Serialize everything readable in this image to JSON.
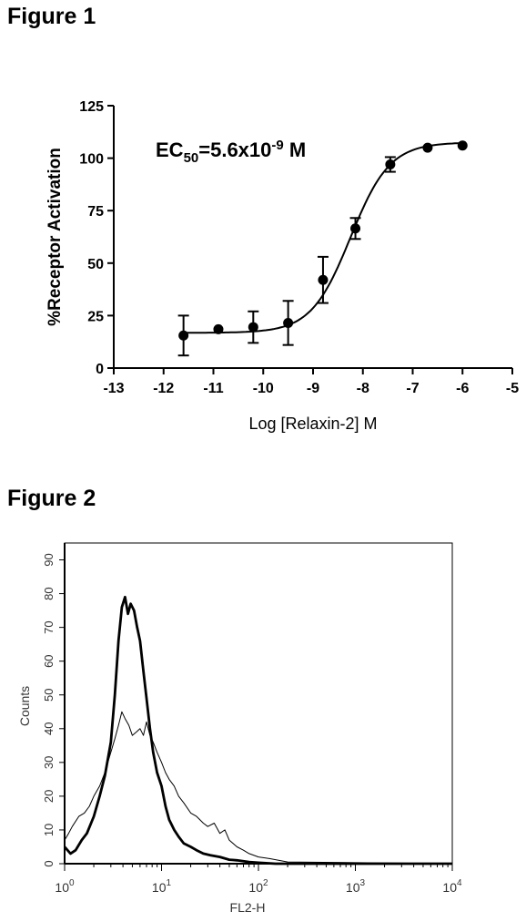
{
  "figures": {
    "fig1_title": "Figure 1",
    "fig2_title": "Figure 2"
  },
  "chart_data": [
    {
      "type": "scatter",
      "subtype": "dose-response scatter with fitted sigmoidal curve and error bars",
      "annotation": {
        "prefix": "EC",
        "subscript": "50",
        "mid": "=5.6x10",
        "superscript": "-9",
        "suffix": " M"
      },
      "xlabel": "Log [Relaxin-2] M",
      "ylabel": "%Receptor Activation",
      "xlim": [
        -13,
        -5
      ],
      "ylim": [
        0,
        125
      ],
      "xticks": [
        -13,
        -12,
        -11,
        -10,
        -9,
        -8,
        -7,
        -6,
        -5
      ],
      "yticks": [
        0,
        25,
        50,
        75,
        100,
        125
      ],
      "grid": false,
      "series": [
        {
          "points": [
            {
              "x": -11.6,
              "y": 15.5,
              "err": 9.5
            },
            {
              "x": -10.9,
              "y": 18.5,
              "err": 0
            },
            {
              "x": -10.2,
              "y": 19.5,
              "err": 7.5
            },
            {
              "x": -9.5,
              "y": 21.5,
              "err": 10.5
            },
            {
              "x": -8.8,
              "y": 42,
              "err": 11
            },
            {
              "x": -8.15,
              "y": 66.5,
              "err": 5
            },
            {
              "x": -7.45,
              "y": 97,
              "err": 3.5
            },
            {
              "x": -6.7,
              "y": 105,
              "err": 0
            },
            {
              "x": -6.0,
              "y": 106,
              "err": 0
            }
          ]
        }
      ],
      "fit": {
        "model": "sigmoidal dose-response",
        "bottom": 16.8,
        "top": 107.5,
        "log_ec50": -8.25,
        "hill_slope": 1.1
      }
    },
    {
      "type": "line",
      "subtype": "flow cytometry histogram overlay",
      "xlabel": "FL2-H",
      "ylabel": "Counts",
      "x_scale": "log",
      "xlim": [
        1,
        10000
      ],
      "ylim": [
        0,
        95
      ],
      "xtick_labels": [
        {
          "base": "10",
          "exp": "0",
          "value": 1
        },
        {
          "base": "10",
          "exp": "1",
          "value": 10
        },
        {
          "base": "10",
          "exp": "2",
          "value": 100
        },
        {
          "base": "10",
          "exp": "3",
          "value": 1000
        },
        {
          "base": "10",
          "exp": "4",
          "value": 10000
        }
      ],
      "yticks": [
        0,
        10,
        20,
        30,
        40,
        50,
        60,
        70,
        80,
        90
      ],
      "series": [
        {
          "style": "thick",
          "x": [
            1,
            1.15,
            1.3,
            1.5,
            1.7,
            2.0,
            2.3,
            2.6,
            3.0,
            3.3,
            3.6,
            3.9,
            4.2,
            4.5,
            4.8,
            5.2,
            5.6,
            6.0,
            6.5,
            7.0,
            7.6,
            8.2,
            9.0,
            10,
            11,
            12,
            13.5,
            15,
            17,
            20,
            23,
            27,
            32,
            40,
            50,
            60,
            80,
            100,
            150,
            10000
          ],
          "y": [
            5,
            3,
            4,
            7,
            9,
            14,
            20,
            26,
            36,
            50,
            66,
            76,
            79,
            74,
            77,
            75,
            70,
            66,
            57,
            49,
            40,
            33,
            27,
            23,
            17,
            13,
            10,
            8,
            6,
            5,
            4,
            3,
            2.5,
            2,
            1.2,
            1,
            0.5,
            0.3,
            0,
            0
          ]
        },
        {
          "style": "thin",
          "x": [
            1,
            1.1,
            1.2,
            1.4,
            1.6,
            1.8,
            2.0,
            2.3,
            2.6,
            3.0,
            3.3,
            3.6,
            3.9,
            4.2,
            4.6,
            5.0,
            5.5,
            6.0,
            6.5,
            7.0,
            7.6,
            8.2,
            9.0,
            10,
            11,
            12,
            13.5,
            15,
            17,
            20,
            23,
            27,
            30,
            35,
            40,
            45,
            50,
            60,
            70,
            80,
            100,
            130,
            200,
            10000
          ],
          "y": [
            7,
            9,
            11,
            14,
            15,
            17,
            20,
            23,
            27,
            33,
            37,
            41,
            45,
            43,
            41,
            38,
            39,
            40,
            38,
            42,
            38,
            36,
            33,
            30,
            27,
            25,
            23,
            20,
            18,
            15,
            14,
            12,
            11,
            12,
            9,
            10,
            7,
            5,
            4,
            3,
            2,
            1.5,
            0.5,
            0
          ]
        }
      ]
    }
  ]
}
